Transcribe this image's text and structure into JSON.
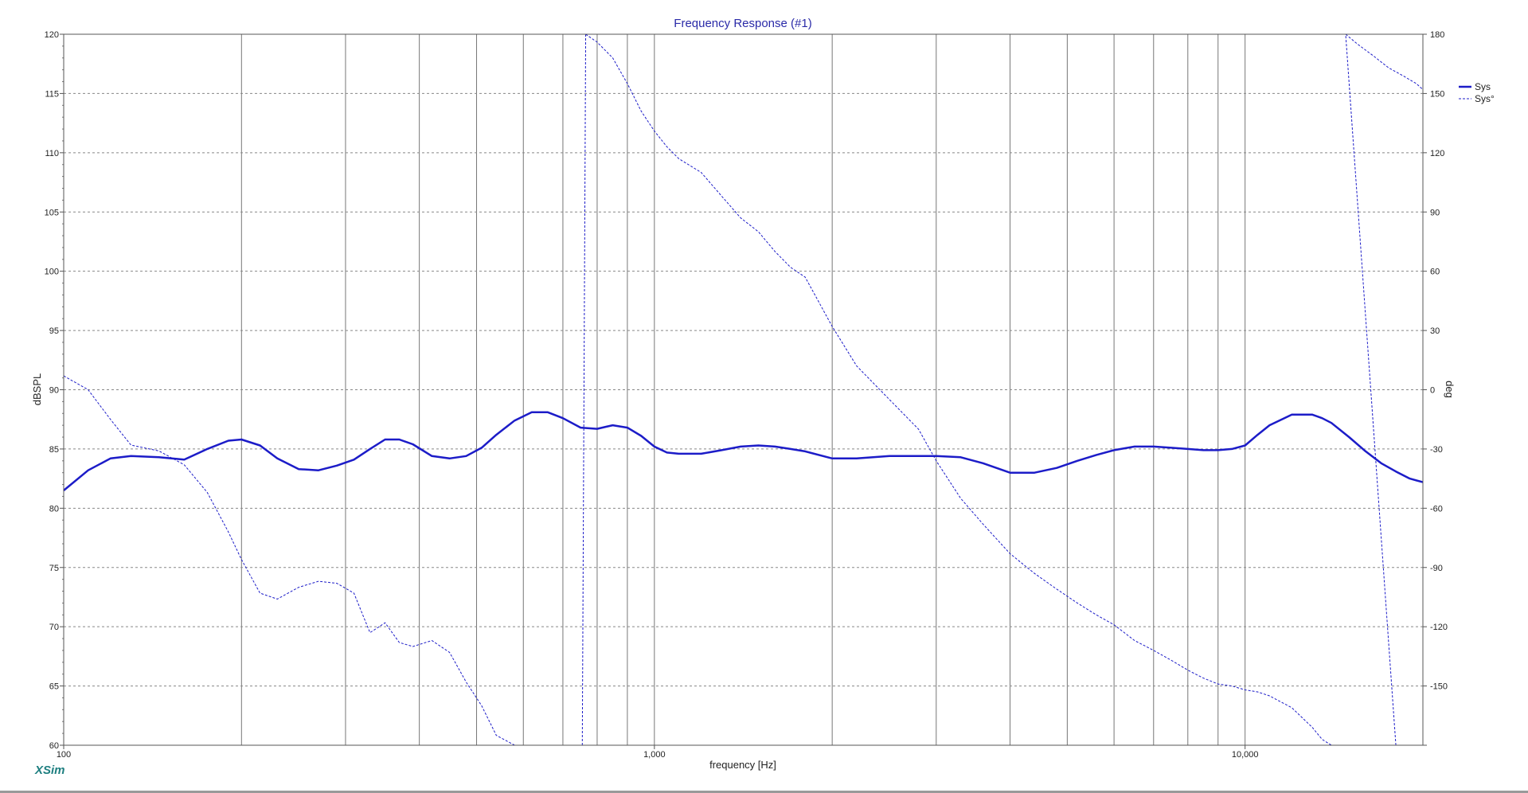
{
  "chart_data": {
    "type": "line",
    "title": "Frequency Response (#1)",
    "xlabel": "frequency [Hz]",
    "ylabel": "dBSPL",
    "y2label": "deg",
    "x_scale": "log",
    "xlim": [
      100,
      20000
    ],
    "ylim": [
      60,
      120
    ],
    "y2lim": [
      -180,
      180
    ],
    "x_ticks": [
      {
        "value": 100,
        "label": "100"
      },
      {
        "value": 1000,
        "label": "1,000"
      },
      {
        "value": 10000,
        "label": "10,000"
      }
    ],
    "y_ticks": [
      "60",
      "65",
      "70",
      "75",
      "80",
      "85",
      "90",
      "95",
      "100",
      "105",
      "110",
      "115",
      "120"
    ],
    "y2_ticks": [
      "",
      "-150",
      "-120",
      "-90",
      "-60",
      "-30",
      "0",
      "30",
      "60",
      "90",
      "120",
      "150",
      "180"
    ],
    "grid": true,
    "legend_position": "right",
    "brand": "XSim",
    "series": [
      {
        "name": "Sys",
        "axis": "left",
        "style": "solid",
        "color": "#1c1cc8",
        "x": [
          100,
          110,
          120,
          130,
          145,
          160,
          175,
          190,
          200,
          215,
          230,
          250,
          270,
          290,
          310,
          330,
          350,
          370,
          390,
          420,
          450,
          480,
          510,
          540,
          580,
          620,
          660,
          700,
          750,
          800,
          850,
          900,
          950,
          1000,
          1050,
          1100,
          1200,
          1300,
          1400,
          1500,
          1600,
          1700,
          1800,
          2000,
          2200,
          2500,
          2800,
          3000,
          3300,
          3600,
          4000,
          4400,
          4800,
          5200,
          5600,
          6000,
          6500,
          7000,
          7500,
          8000,
          8500,
          9000,
          9500,
          10000,
          10500,
          11000,
          12000,
          13000,
          13500,
          14000,
          15000,
          16000,
          17000,
          18000,
          19000,
          20000
        ],
        "y": [
          81.5,
          83.2,
          84.2,
          84.4,
          84.3,
          84.1,
          85.0,
          85.7,
          85.8,
          85.3,
          84.2,
          83.3,
          83.2,
          83.6,
          84.1,
          85.0,
          85.8,
          85.8,
          85.4,
          84.4,
          84.2,
          84.4,
          85.1,
          86.2,
          87.4,
          88.1,
          88.1,
          87.6,
          86.8,
          86.7,
          87.0,
          86.8,
          86.1,
          85.2,
          84.7,
          84.6,
          84.6,
          84.9,
          85.2,
          85.3,
          85.2,
          85.0,
          84.8,
          84.2,
          84.2,
          84.4,
          84.4,
          84.4,
          84.3,
          83.8,
          83.0,
          83.0,
          83.4,
          84.0,
          84.5,
          84.9,
          85.2,
          85.2,
          85.1,
          85.0,
          84.9,
          84.9,
          85.0,
          85.3,
          86.2,
          87.0,
          87.9,
          87.9,
          87.6,
          87.2,
          86.0,
          84.8,
          83.8,
          83.1,
          82.5,
          82.2
        ]
      },
      {
        "name": "Sys°",
        "axis": "right",
        "style": "dashed",
        "color": "#1c1cc8",
        "segments": [
          {
            "x": [
              100,
              110,
              120,
              130,
              145,
              160,
              175,
              190,
              200,
              215,
              230,
              250,
              270,
              290,
              310,
              330,
              350,
              370,
              390,
              420,
              450,
              480,
              510,
              540,
              580,
              620,
              660,
              700,
              740,
              755
            ],
            "y": [
              7,
              0,
              -15,
              -28,
              -31,
              -38,
              -52,
              -72,
              -86,
              -103,
              -106,
              -100,
              -97,
              -98,
              -103,
              -123,
              -118,
              -128,
              -130,
              -127,
              -133,
              -148,
              -160,
              -175,
              -183,
              -196,
              -207,
              -219,
              -230,
              -238
            ]
          },
          {
            "x": [
              765,
              800,
              850,
              900,
              950,
              1000,
              1050,
              1100,
              1200,
              1300,
              1400,
              1500,
              1600,
              1700,
              1800,
              2000,
              2200,
              2500,
              2800,
              3000,
              3300,
              3600,
              4000,
              4400,
              4800,
              5200,
              5600,
              6000,
              6500,
              7000,
              7500,
              8000,
              8500,
              9000,
              9500,
              10000,
              10500,
              11000,
              12000,
              13000,
              13500,
              14000,
              15000,
              16000,
              17000,
              18000
            ],
            "y": [
              180,
              176,
              168,
              155,
              141,
              131,
              123,
              117,
              110,
              98,
              87,
              80,
              70,
              62,
              57,
              32,
              12,
              -5,
              -20,
              -36,
              -55,
              -68,
              -83,
              -93,
              -101,
              -108,
              -114,
              -119,
              -127,
              -132,
              -137,
              -142,
              -146,
              -149,
              -150,
              -152,
              -153,
              -155,
              -161,
              -171,
              -177,
              -182,
              -190,
              -199,
              -206,
              -215
            ]
          },
          {
            "x": [
              14800,
              15500,
              16500,
              17500,
              18500,
              19500,
              20000
            ],
            "y": [
              180,
              175,
              169,
              163,
              159,
              155,
              152
            ]
          }
        ]
      }
    ]
  }
}
